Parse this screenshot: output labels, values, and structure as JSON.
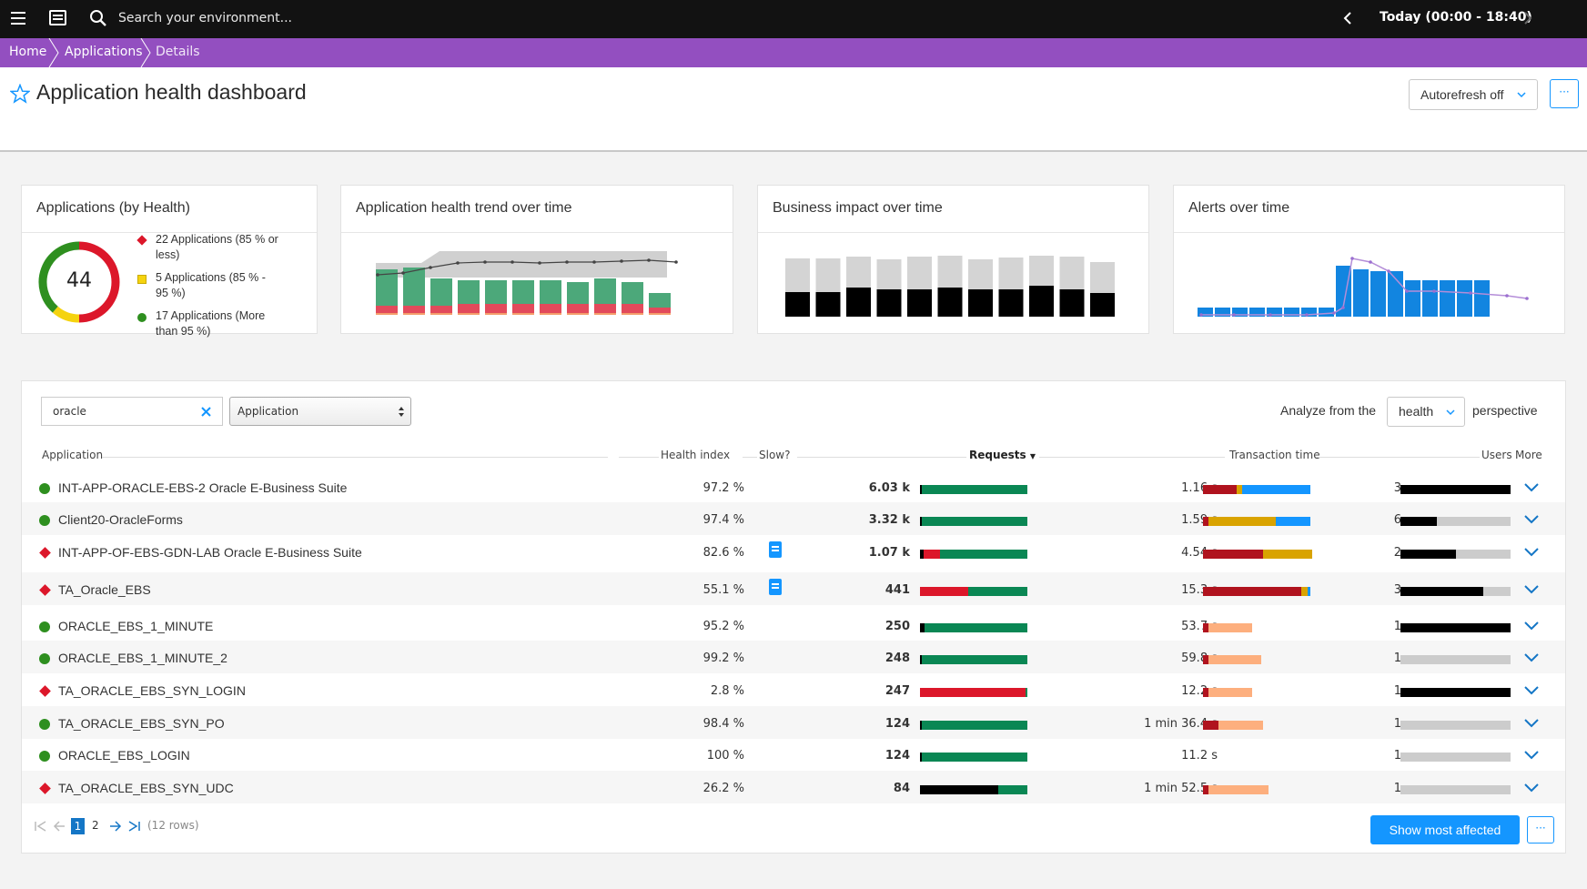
{
  "topbar": {
    "search_placeholder": "Search your environment...",
    "timeframe": "Today (00:00 - 18:40)"
  },
  "breadcrumb": [
    "Home",
    "Applications",
    "Details"
  ],
  "page": {
    "title": "Application health dashboard",
    "autorefresh": "Autorefresh off",
    "more": "···"
  },
  "cards": {
    "health": {
      "title": "Applications (by Health)",
      "total": "44",
      "legend": [
        {
          "line1": "22 Applications (85 % or",
          "line2": "less)"
        },
        {
          "line1": "5 Applications (85 % -",
          "line2": "95 %)"
        },
        {
          "line1": "17 Applications (More",
          "line2": "than 95 %)"
        }
      ],
      "donut_fractions": {
        "red": 0.5,
        "yellow": 0.114,
        "green": 0.386
      },
      "colors": {
        "red": "#dc172a",
        "yellow": "#f5d30f",
        "green": "#2e8f1f"
      }
    },
    "trend": {
      "title": "Application health trend over time"
    },
    "impact": {
      "title": "Business impact over time"
    },
    "alerts": {
      "title": "Alerts over time"
    }
  },
  "filter": {
    "search_value": "oracle",
    "type_select": "Application",
    "analyze_prefix": "Analyze from the",
    "perspective_value": "health",
    "analyze_suffix": "perspective"
  },
  "table": {
    "headers": {
      "application": "Application",
      "health": "Health index",
      "slow": "Slow?",
      "requests": "Requests",
      "transaction": "Transaction time",
      "users": "Users",
      "more": "More"
    },
    "rows": [
      {
        "status": "ok",
        "name": "INT-APP-ORACLE-EBS-2 Oracle E-Business Suite",
        "health": "97.2 %",
        "slow": false,
        "requests": "6.03 k",
        "tx": "1.16 s",
        "users": "3"
      },
      {
        "status": "ok",
        "name": "Client20-OracleForms",
        "health": "97.4 %",
        "slow": false,
        "requests": "3.32 k",
        "tx": "1.59 s",
        "users": "6"
      },
      {
        "status": "bad",
        "name": "INT-APP-OF-EBS-GDN-LAB Oracle E-Business Suite",
        "health": "82.6 %",
        "slow": true,
        "requests": "1.07 k",
        "tx": "4.54 s",
        "users": "2"
      },
      {
        "status": "bad",
        "name": "TA_Oracle_EBS",
        "health": "55.1 %",
        "slow": true,
        "requests": "441",
        "tx": "15.3 s",
        "users": "3"
      },
      {
        "status": "ok",
        "name": "ORACLE_EBS_1_MINUTE",
        "health": "95.2 %",
        "slow": false,
        "requests": "250",
        "tx": "53.7 s",
        "users": "1"
      },
      {
        "status": "ok",
        "name": "ORACLE_EBS_1_MINUTE_2",
        "health": "99.2 %",
        "slow": false,
        "requests": "248",
        "tx": "59.8 s",
        "users": "1"
      },
      {
        "status": "bad",
        "name": "TA_ORACLE_EBS_SYN_LOGIN",
        "health": "2.8 %",
        "slow": false,
        "requests": "247",
        "tx": "12.2 s",
        "users": "1"
      },
      {
        "status": "ok",
        "name": "TA_ORACLE_EBS_SYN_PO",
        "health": "98.4 %",
        "slow": false,
        "requests": "124",
        "tx": "1 min 36.4 s",
        "users": "1"
      },
      {
        "status": "ok",
        "name": "ORACLE_EBS_LOGIN",
        "health": "100 %",
        "slow": false,
        "requests": "124",
        "tx": "11.2 s",
        "users": "1"
      },
      {
        "status": "bad",
        "name": "TA_ORACLE_EBS_SYN_UDC",
        "health": "26.2 %",
        "slow": false,
        "requests": "84",
        "tx": "1 min 52.5 s",
        "users": "1"
      }
    ]
  },
  "pagination": {
    "page1": "1",
    "page2": "2",
    "rows_info": "(12 rows)"
  },
  "actions": {
    "show_most_affected": "Show most affected",
    "more": "···"
  },
  "colors": {
    "accent": "#1496ff",
    "breadcrumb": "#934fc0",
    "ok": "#2e8f1f",
    "bad": "#dc172a"
  }
}
